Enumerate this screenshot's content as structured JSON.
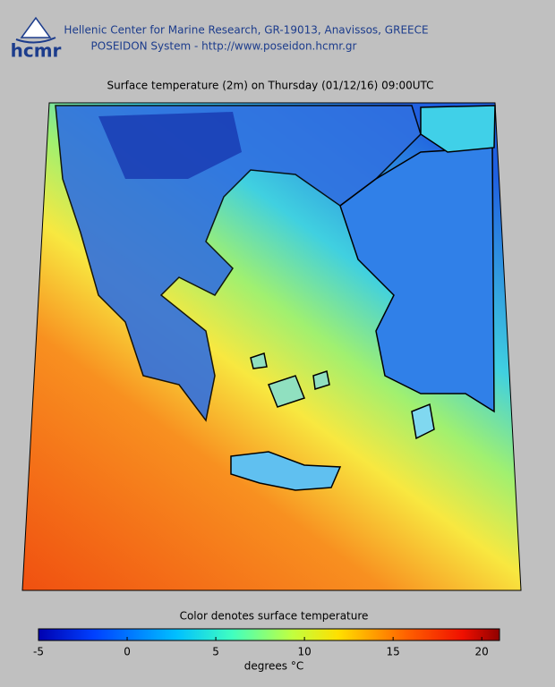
{
  "header": {
    "logo": "hcmr",
    "line1": "Hellenic Center for Marine Research, GR-19013, Anavissos, GREECE",
    "line2": "POSEIDON System - http://www.poseidon.hcmr.gr"
  },
  "title": "Surface temperature (2m) on Thursday (01/12/16) 09:00UTC",
  "colorbar": {
    "label": "Color denotes surface temperature",
    "lim": [
      -5,
      21
    ],
    "ticks": [
      -5,
      0,
      5,
      10,
      15,
      20
    ],
    "units": "degrees °C"
  }
}
